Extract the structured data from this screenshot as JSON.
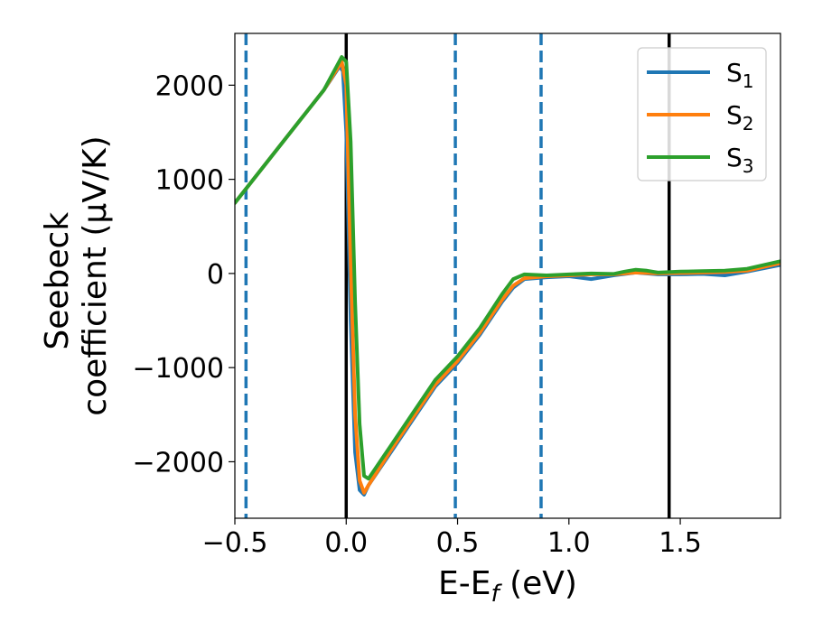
{
  "chart_data": {
    "type": "line",
    "xlabel": "E-E_f (eV)",
    "ylabel_line1": "Seebeck",
    "ylabel_line2": "coefficient  (μV/K)",
    "xlim": [
      -0.5,
      1.95
    ],
    "ylim": [
      -2600,
      2550
    ],
    "xticks": [
      -0.5,
      0.0,
      0.5,
      1.0,
      1.5
    ],
    "xtick_labels": [
      "−0.5",
      "0.0",
      "0.5",
      "1.0",
      "1.5"
    ],
    "yticks": [
      -2000,
      -1000,
      0,
      1000,
      2000
    ],
    "ytick_labels": [
      "−2000",
      "−1000",
      "0",
      "1000",
      "2000"
    ],
    "vlines": [
      {
        "x": -0.45,
        "style": "dashed",
        "color": "#1f77b4"
      },
      {
        "x": 0.0,
        "style": "solid",
        "color": "#000000"
      },
      {
        "x": 0.49,
        "style": "dashed",
        "color": "#1f77b4"
      },
      {
        "x": 0.875,
        "style": "dashed",
        "color": "#1f77b4"
      },
      {
        "x": 1.45,
        "style": "solid",
        "color": "#000000"
      }
    ],
    "legend_position": "top-right",
    "series": [
      {
        "name": "S",
        "subscript": "1",
        "color": "#1f77b4",
        "x": [
          -0.5,
          -0.4,
          -0.3,
          -0.2,
          -0.1,
          -0.03,
          -0.015,
          0.0,
          0.02,
          0.04,
          0.06,
          0.08,
          0.1,
          0.2,
          0.3,
          0.4,
          0.5,
          0.6,
          0.7,
          0.75,
          0.8,
          0.9,
          1.0,
          1.1,
          1.2,
          1.3,
          1.4,
          1.5,
          1.6,
          1.7,
          1.8,
          1.95
        ],
        "y": [
          750,
          1050,
          1350,
          1650,
          1950,
          2200,
          2150,
          1500,
          -500,
          -1900,
          -2300,
          -2350,
          -2250,
          -1900,
          -1550,
          -1200,
          -950,
          -650,
          -300,
          -150,
          -60,
          -40,
          -30,
          -60,
          -20,
          10,
          -10,
          -10,
          -5,
          -20,
          20,
          90
        ]
      },
      {
        "name": "S",
        "subscript": "2",
        "color": "#ff7f0e",
        "x": [
          -0.5,
          -0.4,
          -0.3,
          -0.2,
          -0.1,
          -0.02,
          0.0,
          0.02,
          0.04,
          0.06,
          0.08,
          0.1,
          0.2,
          0.3,
          0.4,
          0.5,
          0.6,
          0.7,
          0.75,
          0.8,
          0.9,
          1.0,
          1.1,
          1.2,
          1.3,
          1.4,
          1.5,
          1.6,
          1.7,
          1.8,
          1.95
        ],
        "y": [
          750,
          1050,
          1350,
          1650,
          1950,
          2250,
          2000,
          100,
          -1500,
          -2200,
          -2330,
          -2250,
          -1880,
          -1530,
          -1180,
          -930,
          -630,
          -280,
          -130,
          -50,
          -30,
          -20,
          -10,
          -10,
          10,
          0,
          5,
          10,
          15,
          30,
          110
        ]
      },
      {
        "name": "S",
        "subscript": "3",
        "color": "#2ca02c",
        "x": [
          -0.5,
          -0.4,
          -0.3,
          -0.2,
          -0.1,
          -0.02,
          0.0,
          0.02,
          0.04,
          0.06,
          0.08,
          0.1,
          0.2,
          0.3,
          0.4,
          0.5,
          0.6,
          0.7,
          0.75,
          0.8,
          0.9,
          1.0,
          1.1,
          1.2,
          1.25,
          1.3,
          1.35,
          1.4,
          1.5,
          1.6,
          1.7,
          1.8,
          1.95
        ],
        "y": [
          750,
          1050,
          1350,
          1650,
          1950,
          2300,
          2250,
          1400,
          -300,
          -1600,
          -2150,
          -2180,
          -1830,
          -1480,
          -1130,
          -880,
          -580,
          -220,
          -60,
          -10,
          -20,
          -10,
          0,
          -5,
          20,
          40,
          30,
          10,
          20,
          25,
          30,
          50,
          130
        ]
      }
    ]
  }
}
